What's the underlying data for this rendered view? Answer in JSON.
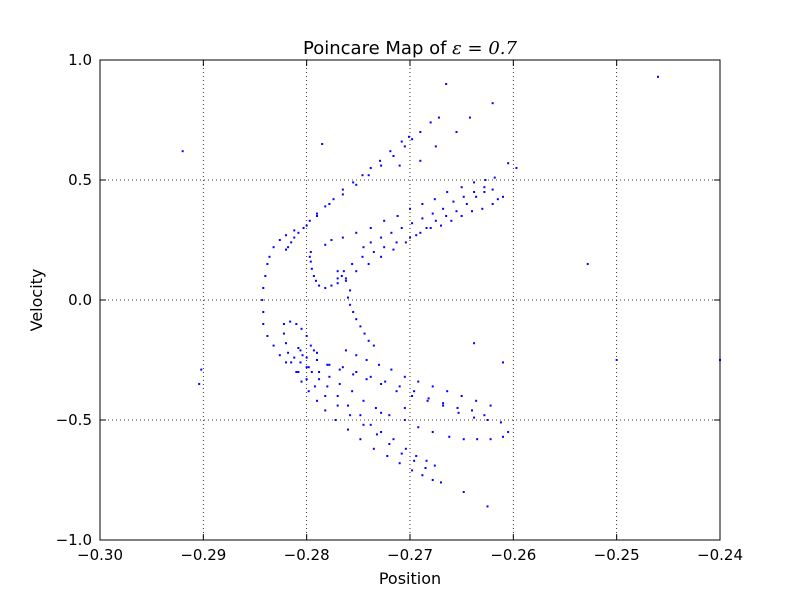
{
  "chart_data": {
    "type": "scatter",
    "title": "Poincare Map of ",
    "title_math": "ε = 0.7",
    "xlabel": "Position",
    "ylabel": "Velocity",
    "xlim": [
      -0.3,
      -0.24
    ],
    "ylim": [
      -1.0,
      1.0
    ],
    "xticks": [
      -0.3,
      -0.29,
      -0.28,
      -0.27,
      -0.26,
      -0.25,
      -0.24
    ],
    "yticks": [
      -1.0,
      -0.5,
      0.0,
      0.5,
      1.0
    ],
    "xtick_labels": [
      "−0.30",
      "−0.29",
      "−0.28",
      "−0.27",
      "−0.26",
      "−0.25",
      "−0.24"
    ],
    "ytick_labels": [
      "−1.0",
      "−0.5",
      "0.0",
      "0.5",
      "1.0"
    ],
    "grid": true,
    "marker_color": "#0000ff",
    "series": [
      {
        "points": [
          [
            -0.2842,
            -0.05
          ],
          [
            -0.2843,
            0.0
          ],
          [
            -0.2842,
            0.05
          ],
          [
            -0.284,
            0.1
          ],
          [
            -0.2838,
            0.15
          ],
          [
            -0.2836,
            0.18
          ],
          [
            -0.2832,
            0.22
          ],
          [
            -0.2826,
            0.25
          ],
          [
            -0.282,
            0.27
          ],
          [
            -0.2812,
            0.29
          ],
          [
            -0.28,
            0.31
          ],
          [
            -0.279,
            0.35
          ],
          [
            -0.2778,
            0.4
          ],
          [
            -0.2765,
            0.44
          ],
          [
            -0.2752,
            0.48
          ],
          [
            -0.274,
            0.52
          ],
          [
            -0.2728,
            0.56
          ],
          [
            -0.2716,
            0.6
          ],
          [
            -0.2705,
            0.64
          ],
          [
            -0.2698,
            0.67
          ],
          [
            -0.269,
            0.7
          ],
          [
            -0.268,
            0.74
          ],
          [
            -0.2672,
            0.76
          ],
          [
            -0.2842,
            -0.1
          ],
          [
            -0.2838,
            -0.15
          ],
          [
            -0.2832,
            -0.19
          ],
          [
            -0.2826,
            -0.23
          ],
          [
            -0.282,
            -0.26
          ],
          [
            -0.282,
            0.21
          ],
          [
            -0.2818,
            0.22
          ],
          [
            -0.2815,
            0.24
          ],
          [
            -0.2812,
            0.26
          ],
          [
            -0.2808,
            0.28
          ],
          [
            -0.2803,
            0.3
          ],
          [
            -0.2797,
            0.33
          ],
          [
            -0.279,
            0.36
          ],
          [
            -0.2782,
            0.39
          ],
          [
            -0.2774,
            0.42
          ],
          [
            -0.2765,
            0.46
          ],
          [
            -0.2755,
            0.49
          ],
          [
            -0.2746,
            0.52
          ],
          [
            -0.2738,
            0.55
          ],
          [
            -0.2729,
            0.58
          ],
          [
            -0.2719,
            0.62
          ],
          [
            -0.2708,
            0.66
          ],
          [
            -0.2701,
            0.68
          ],
          [
            -0.2796,
            0.2
          ],
          [
            -0.2797,
            0.18
          ],
          [
            -0.2796,
            0.16
          ],
          [
            -0.2795,
            0.13
          ],
          [
            -0.2793,
            0.1
          ],
          [
            -0.2791,
            0.08
          ],
          [
            -0.2788,
            0.06
          ],
          [
            -0.2782,
            0.05
          ],
          [
            -0.2776,
            0.06
          ],
          [
            -0.277,
            0.09
          ],
          [
            -0.2764,
            0.12
          ],
          [
            -0.2756,
            0.15
          ],
          [
            -0.2746,
            0.18
          ],
          [
            -0.2735,
            0.2
          ],
          [
            -0.2725,
            0.22
          ],
          [
            -0.2713,
            0.24
          ],
          [
            -0.27,
            0.26
          ],
          [
            -0.269,
            0.28
          ],
          [
            -0.268,
            0.3
          ],
          [
            -0.267,
            0.31
          ],
          [
            -0.266,
            0.33
          ],
          [
            -0.265,
            0.35
          ],
          [
            -0.264,
            0.37
          ],
          [
            -0.263,
            0.38
          ],
          [
            -0.262,
            0.4
          ],
          [
            -0.2615,
            0.42
          ],
          [
            -0.261,
            0.43
          ],
          [
            -0.277,
            0.07
          ],
          [
            -0.2762,
            0.09
          ],
          [
            -0.2752,
            0.12
          ],
          [
            -0.274,
            0.15
          ],
          [
            -0.2728,
            0.18
          ],
          [
            -0.2716,
            0.21
          ],
          [
            -0.2704,
            0.24
          ],
          [
            -0.2694,
            0.27
          ],
          [
            -0.2684,
            0.3
          ],
          [
            -0.2675,
            0.33
          ],
          [
            -0.2665,
            0.35
          ],
          [
            -0.2655,
            0.37
          ],
          [
            -0.2645,
            0.4
          ],
          [
            -0.2636,
            0.43
          ],
          [
            -0.2628,
            0.45
          ],
          [
            -0.262,
            0.46
          ],
          [
            -0.2782,
            0.23
          ],
          [
            -0.2776,
            0.25
          ],
          [
            -0.2765,
            0.26
          ],
          [
            -0.2752,
            0.28
          ],
          [
            -0.2738,
            0.3
          ],
          [
            -0.2725,
            0.33
          ],
          [
            -0.2712,
            0.35
          ],
          [
            -0.27,
            0.38
          ],
          [
            -0.2688,
            0.4
          ],
          [
            -0.2676,
            0.42
          ],
          [
            -0.2664,
            0.45
          ],
          [
            -0.265,
            0.47
          ],
          [
            -0.2638,
            0.49
          ],
          [
            -0.2627,
            0.5
          ],
          [
            -0.2618,
            0.51
          ],
          [
            -0.2745,
            0.22
          ],
          [
            -0.2738,
            0.24
          ],
          [
            -0.2728,
            0.26
          ],
          [
            -0.2718,
            0.28
          ],
          [
            -0.2708,
            0.3
          ],
          [
            -0.2698,
            0.32
          ],
          [
            -0.2688,
            0.34
          ],
          [
            -0.2678,
            0.36
          ],
          [
            -0.2668,
            0.38
          ],
          [
            -0.2658,
            0.41
          ],
          [
            -0.2648,
            0.43
          ],
          [
            -0.2638,
            0.45
          ],
          [
            -0.2628,
            0.47
          ],
          [
            -0.276,
            0.01
          ],
          [
            -0.2758,
            -0.02
          ],
          [
            -0.2755,
            -0.05
          ],
          [
            -0.2752,
            -0.08
          ],
          [
            -0.2748,
            -0.11
          ],
          [
            -0.2744,
            -0.14
          ],
          [
            -0.274,
            -0.17
          ],
          [
            -0.2735,
            -0.19
          ],
          [
            -0.277,
            0.12
          ],
          [
            -0.2766,
            0.1
          ],
          [
            -0.2762,
            0.08
          ],
          [
            -0.2758,
            0.04
          ],
          [
            -0.2822,
            -0.1
          ],
          [
            -0.2816,
            -0.09
          ],
          [
            -0.281,
            -0.1
          ],
          [
            -0.2805,
            -0.12
          ],
          [
            -0.28,
            -0.15
          ],
          [
            -0.2796,
            -0.19
          ],
          [
            -0.2793,
            -0.21
          ],
          [
            -0.279,
            -0.22
          ],
          [
            -0.2808,
            -0.2
          ],
          [
            -0.2806,
            -0.21
          ],
          [
            -0.2804,
            -0.23
          ],
          [
            -0.28,
            -0.24
          ],
          [
            -0.2822,
            -0.14
          ],
          [
            -0.282,
            -0.18
          ],
          [
            -0.2818,
            -0.22
          ],
          [
            -0.2815,
            -0.26
          ],
          [
            -0.281,
            -0.3
          ],
          [
            -0.2805,
            -0.34
          ],
          [
            -0.2798,
            -0.38
          ],
          [
            -0.279,
            -0.42
          ],
          [
            -0.2782,
            -0.46
          ],
          [
            -0.2772,
            -0.5
          ],
          [
            -0.276,
            -0.54
          ],
          [
            -0.2748,
            -0.58
          ],
          [
            -0.2735,
            -0.62
          ],
          [
            -0.2722,
            -0.65
          ],
          [
            -0.271,
            -0.68
          ],
          [
            -0.2698,
            -0.71
          ],
          [
            -0.2688,
            -0.73
          ],
          [
            -0.2678,
            -0.75
          ],
          [
            -0.267,
            -0.76
          ],
          [
            -0.2808,
            -0.3
          ],
          [
            -0.28,
            -0.33
          ],
          [
            -0.2792,
            -0.36
          ],
          [
            -0.2782,
            -0.4
          ],
          [
            -0.277,
            -0.44
          ],
          [
            -0.2758,
            -0.48
          ],
          [
            -0.2745,
            -0.52
          ],
          [
            -0.2732,
            -0.56
          ],
          [
            -0.272,
            -0.6
          ],
          [
            -0.2708,
            -0.64
          ],
          [
            -0.2696,
            -0.67
          ],
          [
            -0.2685,
            -0.7
          ],
          [
            -0.28,
            -0.28
          ],
          [
            -0.2795,
            -0.3
          ],
          [
            -0.2788,
            -0.33
          ],
          [
            -0.278,
            -0.36
          ],
          [
            -0.277,
            -0.4
          ],
          [
            -0.276,
            -0.44
          ],
          [
            -0.2748,
            -0.48
          ],
          [
            -0.2738,
            -0.52
          ],
          [
            -0.2728,
            -0.55
          ],
          [
            -0.2716,
            -0.58
          ],
          [
            -0.2704,
            -0.62
          ],
          [
            -0.2694,
            -0.65
          ],
          [
            -0.2684,
            -0.67
          ],
          [
            -0.2676,
            -0.69
          ],
          [
            -0.2812,
            -0.24
          ],
          [
            -0.2806,
            -0.26
          ],
          [
            -0.2798,
            -0.28
          ],
          [
            -0.2788,
            -0.3
          ],
          [
            -0.2778,
            -0.32
          ],
          [
            -0.2768,
            -0.35
          ],
          [
            -0.2756,
            -0.38
          ],
          [
            -0.2745,
            -0.42
          ],
          [
            -0.2733,
            -0.45
          ],
          [
            -0.272,
            -0.48
          ],
          [
            -0.2705,
            -0.5
          ],
          [
            -0.2692,
            -0.53
          ],
          [
            -0.2678,
            -0.55
          ],
          [
            -0.2662,
            -0.57
          ],
          [
            -0.2648,
            -0.58
          ],
          [
            -0.2635,
            -0.58
          ],
          [
            -0.2622,
            -0.58
          ],
          [
            -0.279,
            -0.25
          ],
          [
            -0.278,
            -0.27
          ],
          [
            -0.2768,
            -0.29
          ],
          [
            -0.2755,
            -0.31
          ],
          [
            -0.2742,
            -0.33
          ],
          [
            -0.2728,
            -0.35
          ],
          [
            -0.2713,
            -0.38
          ],
          [
            -0.2698,
            -0.4
          ],
          [
            -0.2683,
            -0.42
          ],
          [
            -0.2668,
            -0.44
          ],
          [
            -0.2653,
            -0.47
          ],
          [
            -0.2638,
            -0.49
          ],
          [
            -0.2625,
            -0.5
          ],
          [
            -0.2612,
            -0.51
          ],
          [
            -0.2778,
            -0.27
          ],
          [
            -0.2765,
            -0.28
          ],
          [
            -0.2752,
            -0.3
          ],
          [
            -0.2738,
            -0.32
          ],
          [
            -0.2724,
            -0.34
          ],
          [
            -0.271,
            -0.36
          ],
          [
            -0.2696,
            -0.38
          ],
          [
            -0.2682,
            -0.41
          ],
          [
            -0.2668,
            -0.43
          ],
          [
            -0.2654,
            -0.45
          ],
          [
            -0.264,
            -0.46
          ],
          [
            -0.2628,
            -0.48
          ],
          [
            -0.2762,
            -0.21
          ],
          [
            -0.2752,
            -0.23
          ],
          [
            -0.2742,
            -0.25
          ],
          [
            -0.273,
            -0.27
          ],
          [
            -0.2718,
            -0.29
          ],
          [
            -0.2705,
            -0.32
          ],
          [
            -0.2692,
            -0.34
          ],
          [
            -0.2678,
            -0.36
          ],
          [
            -0.2664,
            -0.38
          ],
          [
            -0.265,
            -0.4
          ],
          [
            -0.2636,
            -0.42
          ],
          [
            -0.2622,
            -0.44
          ],
          [
            -0.271,
            0.56
          ],
          [
            -0.269,
            0.58
          ],
          [
            -0.2675,
            0.64
          ],
          [
            -0.2655,
            0.7
          ],
          [
            -0.2642,
            0.76
          ],
          [
            -0.262,
            0.82
          ],
          [
            -0.2605,
            0.57
          ],
          [
            -0.2597,
            0.55
          ],
          [
            -0.2785,
            0.65
          ],
          [
            -0.2728,
            -0.47
          ],
          [
            -0.2705,
            -0.45
          ],
          [
            -0.261,
            -0.57
          ],
          [
            -0.2605,
            -0.55
          ],
          [
            -0.2648,
            -0.8
          ],
          [
            -0.2625,
            -0.86
          ],
          [
            -0.2638,
            -0.18
          ],
          [
            -0.292,
            0.62
          ],
          [
            -0.2902,
            -0.29
          ],
          [
            -0.2904,
            -0.35
          ],
          [
            -0.246,
            0.93
          ],
          [
            -0.2528,
            0.15
          ],
          [
            -0.25,
            -0.25
          ],
          [
            -0.24,
            -0.25
          ],
          [
            -0.261,
            -0.26
          ],
          [
            -0.2665,
            0.9
          ]
        ]
      }
    ]
  }
}
